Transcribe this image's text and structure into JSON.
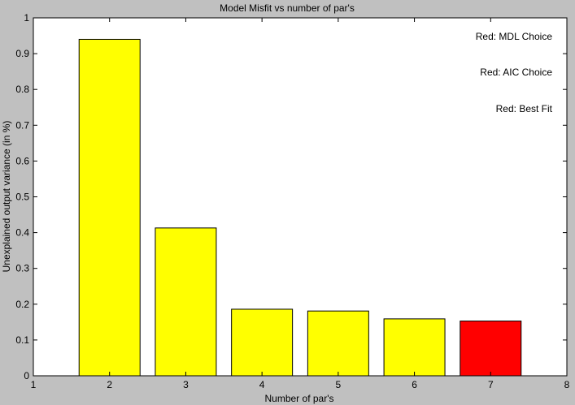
{
  "chart_data": {
    "type": "bar",
    "title": "Model Misfit vs number of par's",
    "xlabel": "Number of par's",
    "ylabel": "Unexplained output variance (in %)",
    "xlim": [
      1,
      8
    ],
    "ylim": [
      0,
      1
    ],
    "xticks": [
      "1",
      "2",
      "3",
      "4",
      "5",
      "6",
      "7",
      "8"
    ],
    "yticks": [
      "0",
      "0.1",
      "0.2",
      "0.3",
      "0.4",
      "0.5",
      "0.6",
      "0.7",
      "0.8",
      "0.9",
      "1"
    ],
    "categories": [
      2,
      3,
      4,
      5,
      6,
      7
    ],
    "values": [
      0.94,
      0.413,
      0.186,
      0.181,
      0.159,
      0.153
    ],
    "bar_colors": [
      "#ffff00",
      "#ffff00",
      "#ffff00",
      "#ffff00",
      "#ffff00",
      "#ff0000"
    ],
    "annotations": [
      "Red: MDL Choice",
      "Red: AIC Choice",
      "Red: Best Fit"
    ],
    "grid": false,
    "colors": {
      "figure_bg": "#c0c0c0",
      "axes_bg": "#ffffff",
      "bar": "#ffff00",
      "highlight": "#ff0000"
    }
  }
}
